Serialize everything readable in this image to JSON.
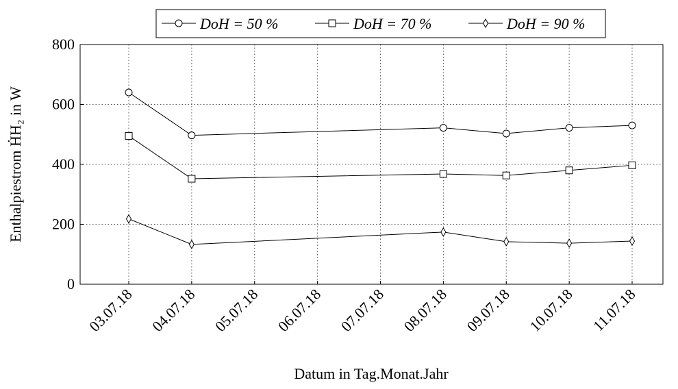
{
  "chart_data": {
    "type": "line",
    "xlabel": "Datum in Tag.Monat.Jahr",
    "ylabel": "Enthalpiestrom ḢH₂ in W",
    "x": [
      "03.07.18",
      "04.07.18",
      "08.07.18",
      "09.07.18",
      "10.07.18",
      "11.07.18"
    ],
    "xticks": [
      "03.07.18",
      "04.07.18",
      "05.07.18",
      "06.07.18",
      "07.07.18",
      "08.07.18",
      "09.07.18",
      "10.07.18",
      "11.07.18"
    ],
    "ylim": [
      0,
      800
    ],
    "yticks": [
      0,
      200,
      400,
      600,
      800
    ],
    "grid": true,
    "series": [
      {
        "name": "DoH = 50 %",
        "color": "#000000",
        "marker": "circle",
        "values": [
          640,
          497,
          522,
          503,
          522,
          530
        ]
      },
      {
        "name": "DoH = 70 %",
        "color": "#000000",
        "marker": "square",
        "values": [
          495,
          352,
          368,
          363,
          380,
          397
        ]
      },
      {
        "name": "DoH = 90 %",
        "color": "#000000",
        "marker": "diamond",
        "values": [
          218,
          133,
          174,
          142,
          137,
          144
        ]
      }
    ]
  }
}
